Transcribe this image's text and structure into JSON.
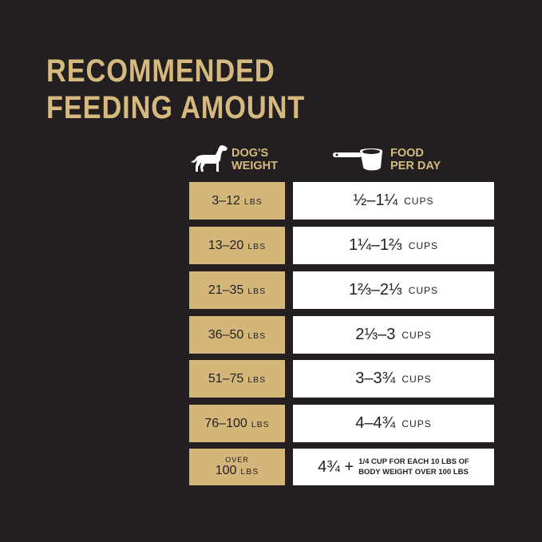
{
  "title": [
    "RECOMMENDED",
    "FEEDING AMOUNT"
  ],
  "headers": {
    "weight": [
      "DOG'S",
      "WEIGHT"
    ],
    "food": [
      "FOOD",
      "PER DAY"
    ],
    "weight_icon": "dog-icon",
    "food_icon": "measuring-cup-icon"
  },
  "colors": {
    "background": "#231f20",
    "gold": "#d4b67b",
    "title": "#d6b97f",
    "white": "#ffffff"
  },
  "rows": [
    {
      "weight": "3–12",
      "unit": "LBS",
      "amount": "½–1¼",
      "amount_unit": "CUPS"
    },
    {
      "weight": "13–20",
      "unit": "LBS",
      "amount": "1¼–1⅔",
      "amount_unit": "CUPS"
    },
    {
      "weight": "21–35",
      "unit": "LBS",
      "amount": "1⅔–2⅓",
      "amount_unit": "CUPS"
    },
    {
      "weight": "36–50",
      "unit": "LBS",
      "amount": "2⅓–3",
      "amount_unit": "CUPS"
    },
    {
      "weight": "51–75",
      "unit": "LBS",
      "amount": "3–3¾",
      "amount_unit": "CUPS"
    },
    {
      "weight": "76–100",
      "unit": "LBS",
      "amount": "4–4¾",
      "amount_unit": "CUPS"
    }
  ],
  "last_row": {
    "prefix": "OVER",
    "weight": "100",
    "unit": "LBS",
    "amount": "4¾ +",
    "note": [
      "1/4 CUP FOR EACH 10 LBS OF",
      "BODY WEIGHT OVER 100 LBS"
    ]
  }
}
